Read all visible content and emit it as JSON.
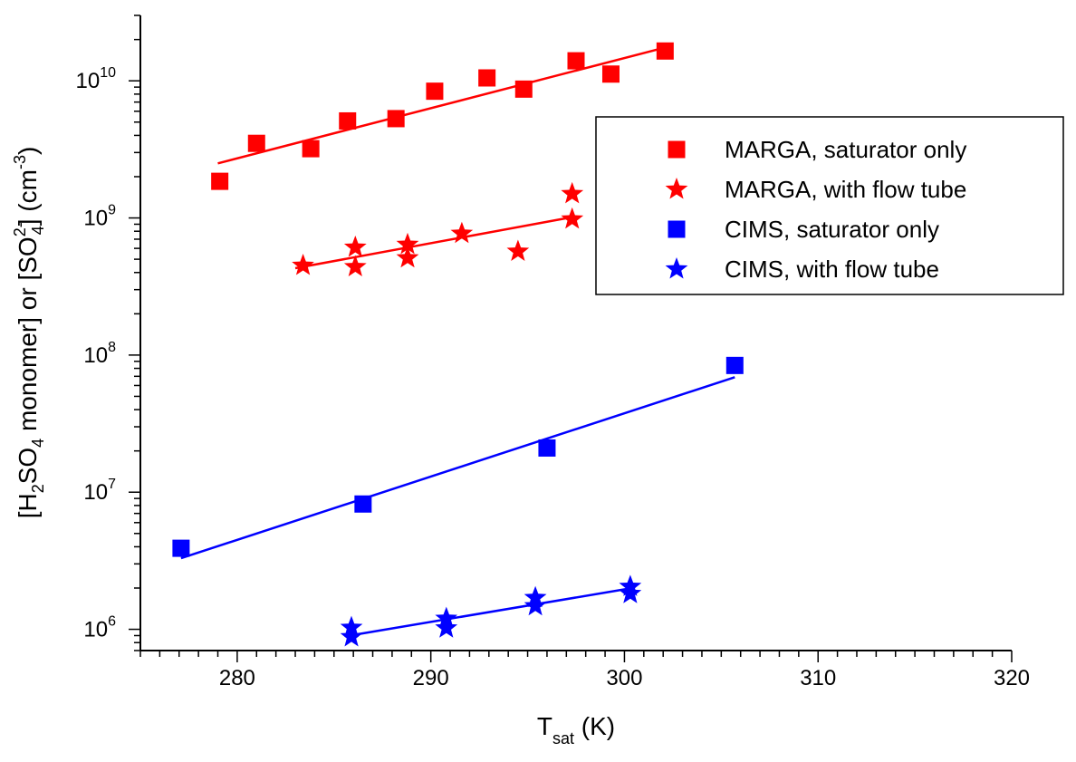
{
  "chart_data": {
    "type": "scatter",
    "xlabel": {
      "main": "T",
      "sub": "sat",
      "unit": " (K)"
    },
    "ylabel": {
      "part1": "[H",
      "sub1": "2",
      "part2": "SO",
      "sub2": "4",
      "part3": " monomer] or [SO",
      "sup": "2-",
      "sub3": "4",
      "part4": "] (cm",
      "sup2": "-3",
      "part5": ")"
    },
    "x_range": [
      275,
      320
    ],
    "y_range": [
      700000,
      30000000000
    ],
    "y_scale": "log",
    "x_ticks": [
      280,
      290,
      300,
      310,
      320
    ],
    "y_ticks": [
      {
        "value": 1000000,
        "base": "10",
        "exp": "6"
      },
      {
        "value": 10000000,
        "base": "10",
        "exp": "7"
      },
      {
        "value": 100000000,
        "base": "10",
        "exp": "8"
      },
      {
        "value": 1000000000,
        "base": "10",
        "exp": "9"
      },
      {
        "value": 10000000000,
        "base": "10",
        "exp": "10"
      }
    ],
    "legend_position": "right",
    "series": [
      {
        "name": "MARGA, saturator only",
        "marker": "square",
        "color": "#ff0000",
        "points": [
          [
            279.1,
            1850000000.0
          ],
          [
            281.0,
            3500000000.0
          ],
          [
            283.8,
            3200000000.0
          ],
          [
            285.7,
            5100000000.0
          ],
          [
            288.2,
            5300000000.0
          ],
          [
            290.2,
            8400000000.0
          ],
          [
            292.9,
            10500000000.0
          ],
          [
            294.8,
            8700000000.0
          ],
          [
            297.5,
            14000000000.0
          ],
          [
            299.3,
            11200000000.0
          ],
          [
            302.1,
            16500000000.0
          ]
        ],
        "fit": [
          [
            279.0,
            2500000000.0
          ],
          [
            302.1,
            17500000000.0
          ]
        ]
      },
      {
        "name": "MARGA, with flow tube",
        "marker": "star",
        "color": "#ff0000",
        "points": [
          [
            283.4,
            450000000.0
          ],
          [
            286.1,
            610000000.0
          ],
          [
            286.1,
            440000000.0
          ],
          [
            288.8,
            640000000.0
          ],
          [
            288.8,
            510000000.0
          ],
          [
            291.6,
            770000000.0
          ],
          [
            294.5,
            570000000.0
          ],
          [
            297.3,
            1500000000.0
          ],
          [
            297.3,
            980000000.0
          ]
        ],
        "fit": [
          [
            283.0,
            430000000.0
          ],
          [
            297.4,
            1020000000.0
          ]
        ]
      },
      {
        "name": "CIMS, saturator only",
        "marker": "square",
        "color": "#0000ff",
        "points": [
          [
            277.1,
            3900000.0
          ],
          [
            286.5,
            8200000.0
          ],
          [
            296.0,
            21000000.0
          ],
          [
            305.7,
            84000000.0
          ]
        ],
        "fit": [
          [
            277.1,
            3300000.0
          ],
          [
            305.7,
            69000000.0
          ]
        ]
      },
      {
        "name": "CIMS, with flow tube",
        "marker": "star",
        "color": "#0000ff",
        "points": [
          [
            285.9,
            1030000.0
          ],
          [
            285.9,
            880000.0
          ],
          [
            290.8,
            1200000.0
          ],
          [
            290.8,
            1020000.0
          ],
          [
            295.4,
            1700000.0
          ],
          [
            295.4,
            1480000.0
          ],
          [
            300.3,
            2050000.0
          ],
          [
            300.3,
            1820000.0
          ]
        ],
        "fit": [
          [
            285.8,
            900000.0
          ],
          [
            300.4,
            2000000.0
          ]
        ]
      }
    ]
  }
}
